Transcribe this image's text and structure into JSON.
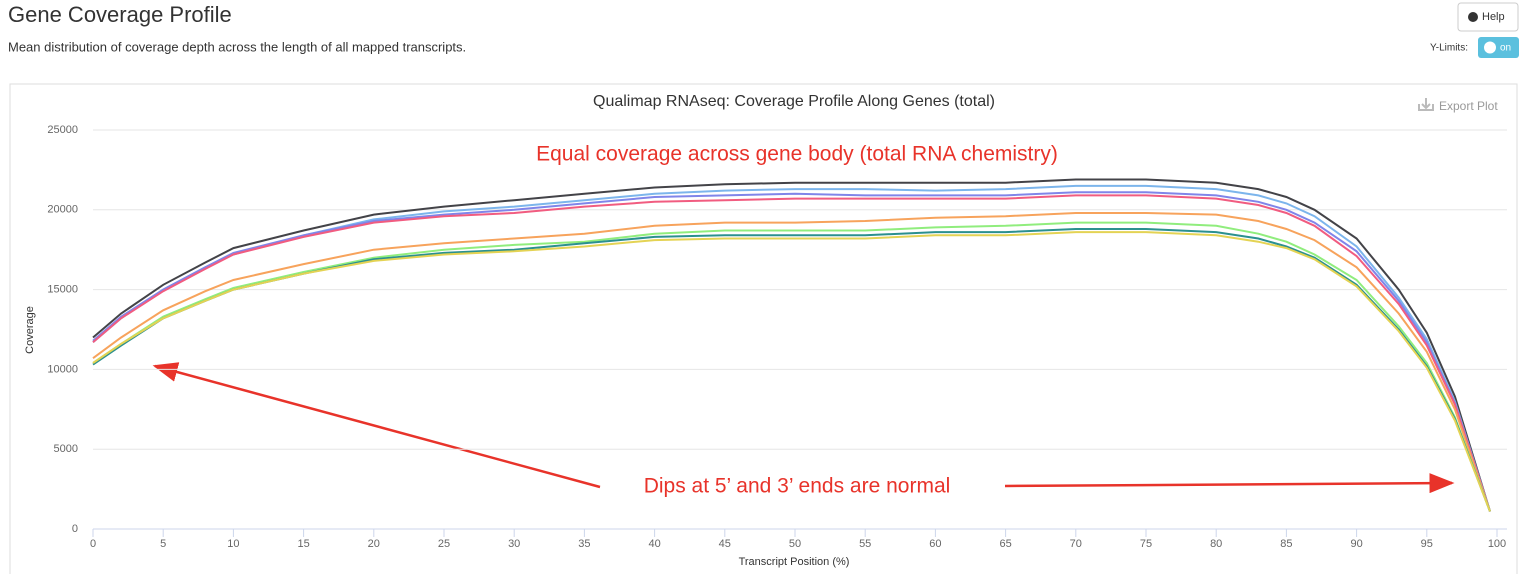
{
  "header": {
    "title": "Gene Coverage Profile",
    "subtitle": "Mean distribution of coverage depth across the length of all mapped transcripts.",
    "help": "Help",
    "ylimits_label": "Y-Limits:",
    "ylimits_toggle": "on"
  },
  "chart_data": {
    "type": "line",
    "title": "Qualimap RNAseq: Coverage Profile Along Genes (total)",
    "export": "Export Plot",
    "xlabel": "Transcript Position (%)",
    "ylabel": "Coverage",
    "annotations": [
      "Equal coverage across gene body (total RNA chemistry)",
      "Dips at 5’ and 3’ ends are normal"
    ],
    "xlim": [
      0,
      100
    ],
    "xticks": [
      0,
      5,
      10,
      15,
      20,
      25,
      30,
      35,
      40,
      45,
      50,
      55,
      60,
      65,
      70,
      75,
      80,
      85,
      90,
      95,
      100
    ],
    "ylim": [
      0,
      25000
    ],
    "yticks": [
      0,
      5000,
      10000,
      15000,
      20000,
      25000
    ],
    "grid": true,
    "x": [
      0,
      2,
      5,
      8,
      10,
      15,
      20,
      25,
      30,
      35,
      40,
      45,
      50,
      55,
      60,
      65,
      70,
      75,
      80,
      83,
      85,
      87,
      90,
      93,
      95,
      97,
      99.5
    ],
    "series": [
      {
        "color": "#434348",
        "values": [
          12000,
          13500,
          15300,
          16700,
          17600,
          18700,
          19700,
          20200,
          20600,
          21000,
          21400,
          21600,
          21700,
          21700,
          21700,
          21700,
          21900,
          21900,
          21700,
          21300,
          20800,
          20000,
          18200,
          15000,
          12300,
          8300,
          1100
        ]
      },
      {
        "color": "#7cb5ec",
        "values": [
          11700,
          13200,
          15000,
          16400,
          17200,
          18400,
          19400,
          19900,
          20200,
          20600,
          21000,
          21200,
          21300,
          21300,
          21200,
          21300,
          21500,
          21500,
          21300,
          20900,
          20400,
          19600,
          17700,
          14500,
          11900,
          8000,
          1100
        ]
      },
      {
        "color": "#8085e9",
        "values": [
          11800,
          13300,
          15000,
          16400,
          17300,
          18400,
          19300,
          19700,
          20000,
          20400,
          20800,
          20900,
          21000,
          20900,
          20900,
          20900,
          21100,
          21100,
          20900,
          20500,
          20000,
          19200,
          17400,
          14300,
          11700,
          7900,
          1100
        ]
      },
      {
        "color": "#f15c80",
        "values": [
          11700,
          13200,
          14900,
          16300,
          17200,
          18300,
          19200,
          19600,
          19800,
          20200,
          20500,
          20600,
          20700,
          20700,
          20700,
          20700,
          20900,
          20900,
          20700,
          20300,
          19800,
          19000,
          17100,
          14100,
          11500,
          7800,
          1100
        ]
      },
      {
        "color": "#f7a35c",
        "values": [
          10700,
          12000,
          13700,
          14900,
          15600,
          16600,
          17500,
          17900,
          18200,
          18500,
          19000,
          19200,
          19200,
          19300,
          19500,
          19600,
          19800,
          19800,
          19700,
          19300,
          18800,
          18100,
          16400,
          13500,
          11100,
          7500,
          1100
        ]
      },
      {
        "color": "#90ed7d",
        "values": [
          10400,
          11600,
          13300,
          14400,
          15100,
          16100,
          17000,
          17500,
          17800,
          18000,
          18500,
          18700,
          18700,
          18700,
          18900,
          19000,
          19200,
          19200,
          19000,
          18500,
          18000,
          17200,
          15600,
          12700,
          10400,
          7000,
          1100
        ]
      },
      {
        "color": "#2b908f",
        "values": [
          10300,
          11500,
          13200,
          14300,
          15000,
          16000,
          16900,
          17300,
          17500,
          17900,
          18300,
          18400,
          18400,
          18400,
          18600,
          18600,
          18800,
          18800,
          18600,
          18200,
          17700,
          17000,
          15300,
          12500,
          10200,
          6900,
          1100
        ]
      },
      {
        "color": "#e4d354",
        "values": [
          10400,
          11600,
          13200,
          14300,
          15000,
          16000,
          16800,
          17200,
          17400,
          17700,
          18100,
          18200,
          18200,
          18200,
          18400,
          18400,
          18600,
          18600,
          18400,
          18000,
          17600,
          16900,
          15200,
          12400,
          10100,
          6800,
          1100
        ]
      }
    ]
  }
}
